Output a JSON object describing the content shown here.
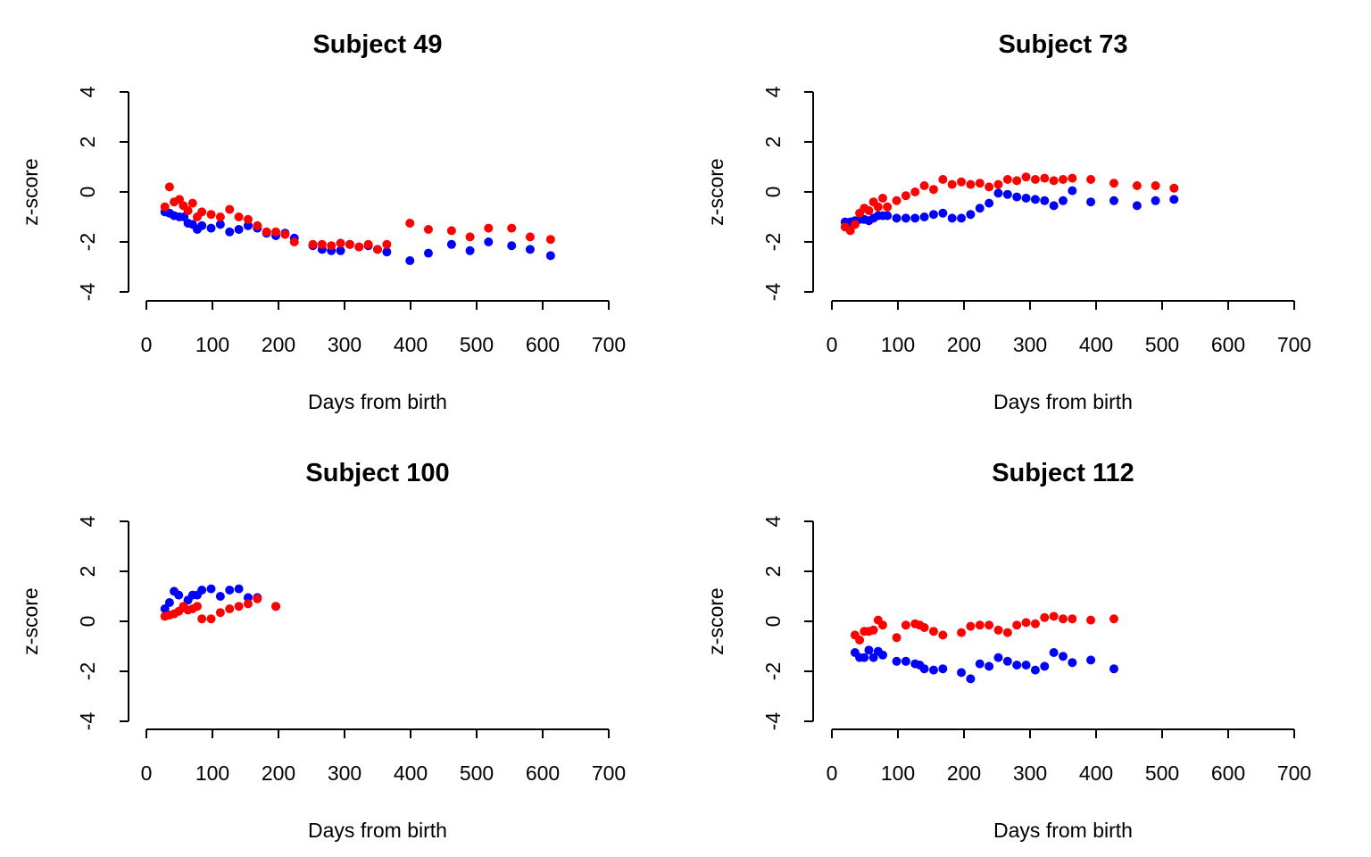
{
  "figure": {
    "background": "#ffffff"
  },
  "chart_data": [
    {
      "type": "scatter",
      "title": "Subject  49",
      "xlabel": "Days from birth",
      "ylabel": "z-score",
      "xlim": [
        0,
        700
      ],
      "ylim": [
        -4,
        4
      ],
      "x_ticks": [
        "0",
        "100",
        "200",
        "300",
        "400",
        "500",
        "600",
        "700"
      ],
      "y_ticks": [
        "-4",
        "-2",
        "0",
        "2",
        "4"
      ],
      "grid": false,
      "series": [
        {
          "color": "#0000ff",
          "points": [
            [
              28,
              -0.8
            ],
            [
              35,
              -0.85
            ],
            [
              42,
              -0.95
            ],
            [
              50,
              -1.0
            ],
            [
              57,
              -1.0
            ],
            [
              63,
              -1.25
            ],
            [
              70,
              -1.3
            ],
            [
              77,
              -1.5
            ],
            [
              84,
              -1.35
            ],
            [
              98,
              -1.45
            ],
            [
              112,
              -1.3
            ],
            [
              126,
              -1.6
            ],
            [
              140,
              -1.5
            ],
            [
              154,
              -1.35
            ],
            [
              168,
              -1.45
            ],
            [
              182,
              -1.65
            ],
            [
              196,
              -1.75
            ],
            [
              210,
              -1.65
            ],
            [
              224,
              -1.85
            ],
            [
              252,
              -2.15
            ],
            [
              266,
              -2.3
            ],
            [
              280,
              -2.35
            ],
            [
              294,
              -2.35
            ],
            [
              308,
              -2.1
            ],
            [
              322,
              -2.2
            ],
            [
              336,
              -2.15
            ],
            [
              350,
              -2.3
            ],
            [
              364,
              -2.4
            ],
            [
              399,
              -2.75
            ],
            [
              427,
              -2.45
            ],
            [
              462,
              -2.1
            ],
            [
              490,
              -2.35
            ],
            [
              518,
              -2.0
            ],
            [
              553,
              -2.15
            ],
            [
              581,
              -2.3
            ],
            [
              612,
              -2.55
            ]
          ]
        },
        {
          "color": "#ff0000",
          "points": [
            [
              28,
              -0.6
            ],
            [
              35,
              0.2
            ],
            [
              42,
              -0.4
            ],
            [
              50,
              -0.3
            ],
            [
              56,
              -0.55
            ],
            [
              63,
              -0.75
            ],
            [
              70,
              -0.45
            ],
            [
              77,
              -1.0
            ],
            [
              84,
              -0.8
            ],
            [
              98,
              -0.9
            ],
            [
              112,
              -1.0
            ],
            [
              126,
              -0.7
            ],
            [
              140,
              -1.0
            ],
            [
              154,
              -1.1
            ],
            [
              168,
              -1.35
            ],
            [
              182,
              -1.6
            ],
            [
              196,
              -1.6
            ],
            [
              210,
              -1.7
            ],
            [
              224,
              -2.0
            ],
            [
              252,
              -2.1
            ],
            [
              266,
              -2.1
            ],
            [
              280,
              -2.15
            ],
            [
              294,
              -2.05
            ],
            [
              308,
              -2.1
            ],
            [
              322,
              -2.2
            ],
            [
              336,
              -2.1
            ],
            [
              350,
              -2.3
            ],
            [
              364,
              -2.1
            ],
            [
              399,
              -1.25
            ],
            [
              427,
              -1.5
            ],
            [
              462,
              -1.55
            ],
            [
              490,
              -1.8
            ],
            [
              518,
              -1.45
            ],
            [
              553,
              -1.45
            ],
            [
              581,
              -1.8
            ],
            [
              612,
              -1.9
            ]
          ]
        }
      ]
    },
    {
      "type": "scatter",
      "title": "Subject  73",
      "xlabel": "Days from birth",
      "ylabel": "z-score",
      "xlim": [
        0,
        700
      ],
      "ylim": [
        -4,
        4
      ],
      "x_ticks": [
        "0",
        "100",
        "200",
        "300",
        "400",
        "500",
        "600",
        "700"
      ],
      "y_ticks": [
        "-4",
        "-2",
        "0",
        "2",
        "4"
      ],
      "grid": false,
      "series": [
        {
          "color": "#0000ff",
          "points": [
            [
              20,
              -1.2
            ],
            [
              28,
              -1.2
            ],
            [
              35,
              -1.15
            ],
            [
              42,
              -1.1
            ],
            [
              49,
              -1.1
            ],
            [
              56,
              -1.15
            ],
            [
              63,
              -1.05
            ],
            [
              70,
              -0.95
            ],
            [
              77,
              -0.95
            ],
            [
              84,
              -0.95
            ],
            [
              98,
              -1.05
            ],
            [
              112,
              -1.05
            ],
            [
              126,
              -1.05
            ],
            [
              140,
              -1.0
            ],
            [
              154,
              -0.9
            ],
            [
              168,
              -0.85
            ],
            [
              182,
              -1.05
            ],
            [
              196,
              -1.05
            ],
            [
              210,
              -0.9
            ],
            [
              224,
              -0.65
            ],
            [
              238,
              -0.45
            ],
            [
              252,
              -0.05
            ],
            [
              266,
              -0.1
            ],
            [
              280,
              -0.2
            ],
            [
              294,
              -0.25
            ],
            [
              308,
              -0.3
            ],
            [
              322,
              -0.35
            ],
            [
              336,
              -0.55
            ],
            [
              350,
              -0.35
            ],
            [
              364,
              0.05
            ],
            [
              392,
              -0.4
            ],
            [
              427,
              -0.35
            ],
            [
              462,
              -0.55
            ],
            [
              490,
              -0.35
            ],
            [
              518,
              -0.3
            ]
          ]
        },
        {
          "color": "#ff0000",
          "points": [
            [
              20,
              -1.4
            ],
            [
              28,
              -1.55
            ],
            [
              35,
              -1.3
            ],
            [
              42,
              -0.85
            ],
            [
              49,
              -0.65
            ],
            [
              56,
              -0.75
            ],
            [
              63,
              -0.4
            ],
            [
              70,
              -0.6
            ],
            [
              77,
              -0.25
            ],
            [
              84,
              -0.6
            ],
            [
              98,
              -0.35
            ],
            [
              112,
              -0.15
            ],
            [
              126,
              0.0
            ],
            [
              140,
              0.25
            ],
            [
              154,
              0.1
            ],
            [
              168,
              0.5
            ],
            [
              182,
              0.3
            ],
            [
              196,
              0.4
            ],
            [
              210,
              0.3
            ],
            [
              224,
              0.35
            ],
            [
              238,
              0.2
            ],
            [
              252,
              0.3
            ],
            [
              266,
              0.5
            ],
            [
              280,
              0.45
            ],
            [
              294,
              0.6
            ],
            [
              308,
              0.5
            ],
            [
              322,
              0.55
            ],
            [
              336,
              0.45
            ],
            [
              350,
              0.5
            ],
            [
              364,
              0.55
            ],
            [
              392,
              0.5
            ],
            [
              427,
              0.35
            ],
            [
              462,
              0.25
            ],
            [
              490,
              0.25
            ],
            [
              518,
              0.15
            ]
          ]
        }
      ]
    },
    {
      "type": "scatter",
      "title": "Subject  100",
      "xlabel": "Days from birth",
      "ylabel": "z-score",
      "xlim": [
        0,
        700
      ],
      "ylim": [
        -4,
        4
      ],
      "x_ticks": [
        "0",
        "100",
        "200",
        "300",
        "400",
        "500",
        "600",
        "700"
      ],
      "y_ticks": [
        "-4",
        "-2",
        "0",
        "2",
        "4"
      ],
      "grid": false,
      "series": [
        {
          "color": "#0000ff",
          "points": [
            [
              28,
              0.5
            ],
            [
              35,
              0.75
            ],
            [
              42,
              1.2
            ],
            [
              49,
              1.05
            ],
            [
              56,
              0.55
            ],
            [
              63,
              0.85
            ],
            [
              70,
              1.05
            ],
            [
              77,
              1.05
            ],
            [
              84,
              1.25
            ],
            [
              98,
              1.3
            ],
            [
              112,
              1.0
            ],
            [
              126,
              1.25
            ],
            [
              140,
              1.3
            ],
            [
              154,
              0.95
            ],
            [
              168,
              0.95
            ],
            [
              196,
              0.6
            ]
          ]
        },
        {
          "color": "#ff0000",
          "points": [
            [
              28,
              0.2
            ],
            [
              35,
              0.25
            ],
            [
              42,
              0.3
            ],
            [
              49,
              0.4
            ],
            [
              56,
              0.6
            ],
            [
              63,
              0.45
            ],
            [
              70,
              0.5
            ],
            [
              77,
              0.6
            ],
            [
              84,
              0.1
            ],
            [
              98,
              0.1
            ],
            [
              112,
              0.35
            ],
            [
              126,
              0.5
            ],
            [
              140,
              0.6
            ],
            [
              154,
              0.7
            ],
            [
              168,
              0.9
            ],
            [
              196,
              0.6
            ]
          ]
        }
      ]
    },
    {
      "type": "scatter",
      "title": "Subject  112",
      "xlabel": "Days from birth",
      "ylabel": "z-score",
      "xlim": [
        0,
        700
      ],
      "ylim": [
        -4,
        4
      ],
      "x_ticks": [
        "0",
        "100",
        "200",
        "300",
        "400",
        "500",
        "600",
        "700"
      ],
      "y_ticks": [
        "-4",
        "-2",
        "0",
        "2",
        "4"
      ],
      "grid": false,
      "series": [
        {
          "color": "#0000ff",
          "points": [
            [
              35,
              -1.25
            ],
            [
              42,
              -1.45
            ],
            [
              49,
              -1.45
            ],
            [
              56,
              -1.15
            ],
            [
              63,
              -1.45
            ],
            [
              70,
              -1.2
            ],
            [
              77,
              -1.35
            ],
            [
              98,
              -1.6
            ],
            [
              112,
              -1.6
            ],
            [
              126,
              -1.7
            ],
            [
              133,
              -1.75
            ],
            [
              140,
              -1.9
            ],
            [
              154,
              -1.95
            ],
            [
              168,
              -1.9
            ],
            [
              196,
              -2.05
            ],
            [
              210,
              -2.3
            ],
            [
              224,
              -1.7
            ],
            [
              238,
              -1.8
            ],
            [
              252,
              -1.45
            ],
            [
              266,
              -1.6
            ],
            [
              280,
              -1.75
            ],
            [
              294,
              -1.75
            ],
            [
              308,
              -1.95
            ],
            [
              322,
              -1.8
            ],
            [
              336,
              -1.25
            ],
            [
              350,
              -1.4
            ],
            [
              364,
              -1.65
            ],
            [
              392,
              -1.55
            ],
            [
              427,
              -1.9
            ]
          ]
        },
        {
          "color": "#ff0000",
          "points": [
            [
              35,
              -0.55
            ],
            [
              42,
              -0.75
            ],
            [
              49,
              -0.4
            ],
            [
              56,
              -0.4
            ],
            [
              63,
              -0.35
            ],
            [
              70,
              0.05
            ],
            [
              77,
              -0.15
            ],
            [
              98,
              -0.65
            ],
            [
              112,
              -0.15
            ],
            [
              126,
              -0.1
            ],
            [
              133,
              -0.15
            ],
            [
              140,
              -0.25
            ],
            [
              154,
              -0.4
            ],
            [
              168,
              -0.55
            ],
            [
              196,
              -0.45
            ],
            [
              210,
              -0.2
            ],
            [
              224,
              -0.15
            ],
            [
              238,
              -0.15
            ],
            [
              252,
              -0.35
            ],
            [
              266,
              -0.45
            ],
            [
              280,
              -0.15
            ],
            [
              294,
              -0.05
            ],
            [
              308,
              -0.1
            ],
            [
              322,
              0.15
            ],
            [
              336,
              0.2
            ],
            [
              350,
              0.1
            ],
            [
              364,
              0.1
            ],
            [
              392,
              0.05
            ],
            [
              427,
              0.1
            ]
          ]
        }
      ]
    }
  ]
}
